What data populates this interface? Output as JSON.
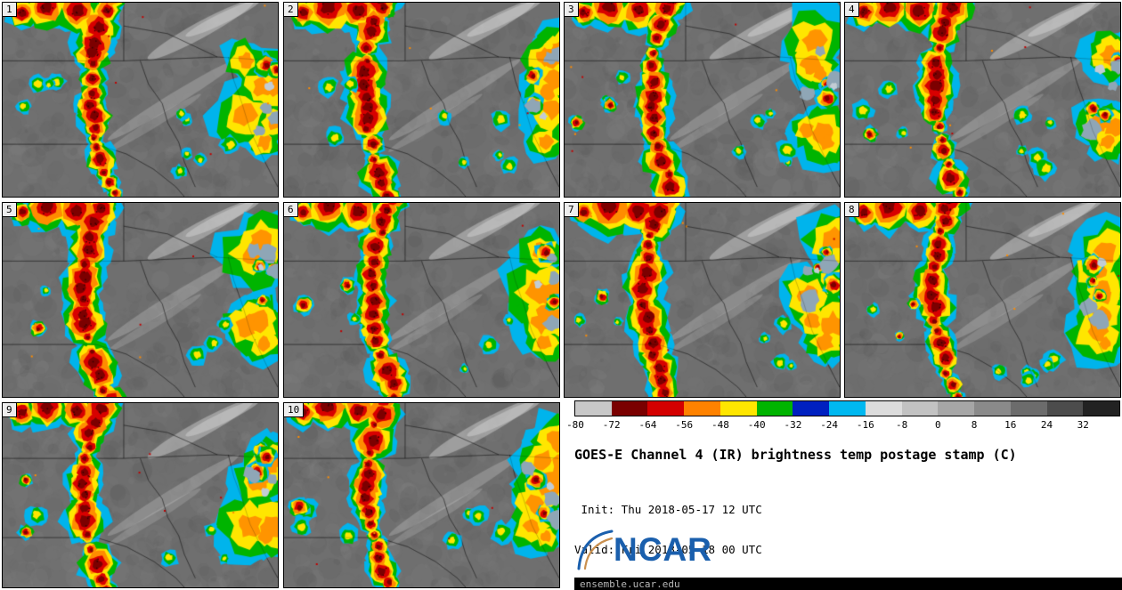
{
  "panels": [
    {
      "label": "1",
      "seed": 101
    },
    {
      "label": "2",
      "seed": 202
    },
    {
      "label": "3",
      "seed": 303
    },
    {
      "label": "4",
      "seed": 404
    },
    {
      "label": "5",
      "seed": 505
    },
    {
      "label": "6",
      "seed": 606
    },
    {
      "label": "7",
      "seed": 707
    },
    {
      "label": "8",
      "seed": 808
    },
    {
      "label": "9",
      "seed": 909
    },
    {
      "label": "10",
      "seed": 1010
    }
  ],
  "colorbar": {
    "tick_labels": [
      "-80",
      "-72",
      "-64",
      "-56",
      "-48",
      "-40",
      "-32",
      "-24",
      "-16",
      "-8",
      "0",
      "8",
      "16",
      "24",
      "32"
    ],
    "segment_colors": [
      "#c8c8c8",
      "#7a0000",
      "#d40000",
      "#ff8200",
      "#ffe600",
      "#00b400",
      "#0020c0",
      "#00b8f0",
      "#dcdcdc",
      "#c2c2c2",
      "#a6a6a6",
      "#8a8a8a",
      "#6c6c6c",
      "#4c4c4c",
      "#222222"
    ]
  },
  "info": {
    "title": "GOES-E Channel 4 (IR) brightness temp postage stamp (C)",
    "init_line": " Init: Thu 2018-05-17 12 UTC",
    "valid_line": "Valid: Fri 2018-05-18 00 UTC"
  },
  "branding": {
    "logo_text": "NCAR",
    "logo_color": "#1a5fad",
    "url_text": "ensemble.ucar.edu"
  },
  "palette": {
    "panel_base": "#6f6f6f",
    "cell_colors": [
      "#00b4ec",
      "#00b400",
      "#ffe600",
      "#ff8c00",
      "#d80000",
      "#7c0000"
    ]
  }
}
